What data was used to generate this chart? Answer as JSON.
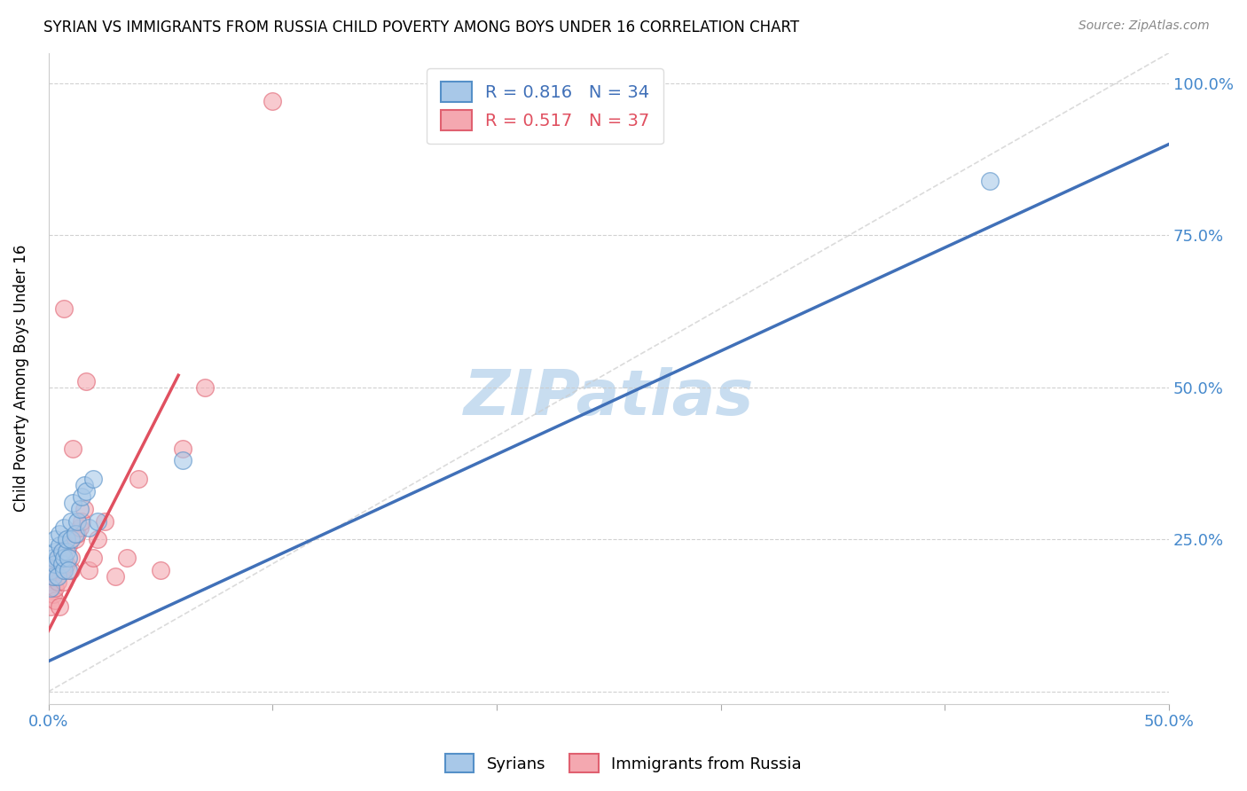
{
  "title": "SYRIAN VS IMMIGRANTS FROM RUSSIA CHILD POVERTY AMONG BOYS UNDER 16 CORRELATION CHART",
  "source": "Source: ZipAtlas.com",
  "ylabel_label": "Child Poverty Among Boys Under 16",
  "xlim": [
    0.0,
    0.5
  ],
  "ylim": [
    -0.02,
    1.05
  ],
  "xticks": [
    0.0,
    0.1,
    0.2,
    0.3,
    0.4,
    0.5
  ],
  "xtick_labels": [
    "0.0%",
    "",
    "",
    "",
    "",
    "50.0%"
  ],
  "yticks": [
    0.0,
    0.25,
    0.5,
    0.75,
    1.0
  ],
  "ytick_labels_right": [
    "",
    "25.0%",
    "50.0%",
    "75.0%",
    "100.0%"
  ],
  "blue_color": "#a8c8e8",
  "pink_color": "#f4a8b0",
  "blue_edge_color": "#5590c8",
  "pink_edge_color": "#e06070",
  "blue_line_color": "#4070b8",
  "pink_line_color": "#e05060",
  "diagonal_color": "#cccccc",
  "watermark_color": "#c8ddf0",
  "legend_blue_R": "0.816",
  "legend_blue_N": "34",
  "legend_pink_R": "0.517",
  "legend_pink_N": "37",
  "blue_scatter_x": [
    0.001,
    0.001,
    0.002,
    0.002,
    0.003,
    0.003,
    0.003,
    0.004,
    0.004,
    0.005,
    0.005,
    0.006,
    0.006,
    0.007,
    0.007,
    0.007,
    0.008,
    0.008,
    0.009,
    0.009,
    0.01,
    0.01,
    0.011,
    0.012,
    0.013,
    0.014,
    0.015,
    0.016,
    0.017,
    0.018,
    0.02,
    0.022,
    0.06,
    0.42
  ],
  "blue_scatter_y": [
    0.17,
    0.2,
    0.22,
    0.19,
    0.23,
    0.21,
    0.25,
    0.22,
    0.19,
    0.24,
    0.26,
    0.21,
    0.23,
    0.27,
    0.2,
    0.22,
    0.23,
    0.25,
    0.22,
    0.2,
    0.28,
    0.25,
    0.31,
    0.26,
    0.28,
    0.3,
    0.32,
    0.34,
    0.33,
    0.27,
    0.35,
    0.28,
    0.38,
    0.84
  ],
  "pink_scatter_x": [
    0.001,
    0.001,
    0.002,
    0.002,
    0.003,
    0.003,
    0.003,
    0.004,
    0.004,
    0.005,
    0.005,
    0.006,
    0.006,
    0.007,
    0.007,
    0.008,
    0.009,
    0.01,
    0.01,
    0.011,
    0.012,
    0.013,
    0.014,
    0.015,
    0.016,
    0.017,
    0.018,
    0.02,
    0.022,
    0.025,
    0.03,
    0.035,
    0.04,
    0.05,
    0.06,
    0.07,
    0.1
  ],
  "pink_scatter_y": [
    0.14,
    0.18,
    0.16,
    0.19,
    0.15,
    0.17,
    0.2,
    0.18,
    0.21,
    0.14,
    0.22,
    0.2,
    0.23,
    0.18,
    0.63,
    0.21,
    0.24,
    0.2,
    0.22,
    0.4,
    0.25,
    0.26,
    0.27,
    0.28,
    0.3,
    0.51,
    0.2,
    0.22,
    0.25,
    0.28,
    0.19,
    0.22,
    0.35,
    0.2,
    0.4,
    0.5,
    0.97
  ],
  "blue_line_x": [
    0.0,
    0.5
  ],
  "blue_line_y": [
    0.05,
    0.9
  ],
  "pink_line_x": [
    0.0,
    0.058
  ],
  "pink_line_y": [
    0.1,
    0.52
  ]
}
